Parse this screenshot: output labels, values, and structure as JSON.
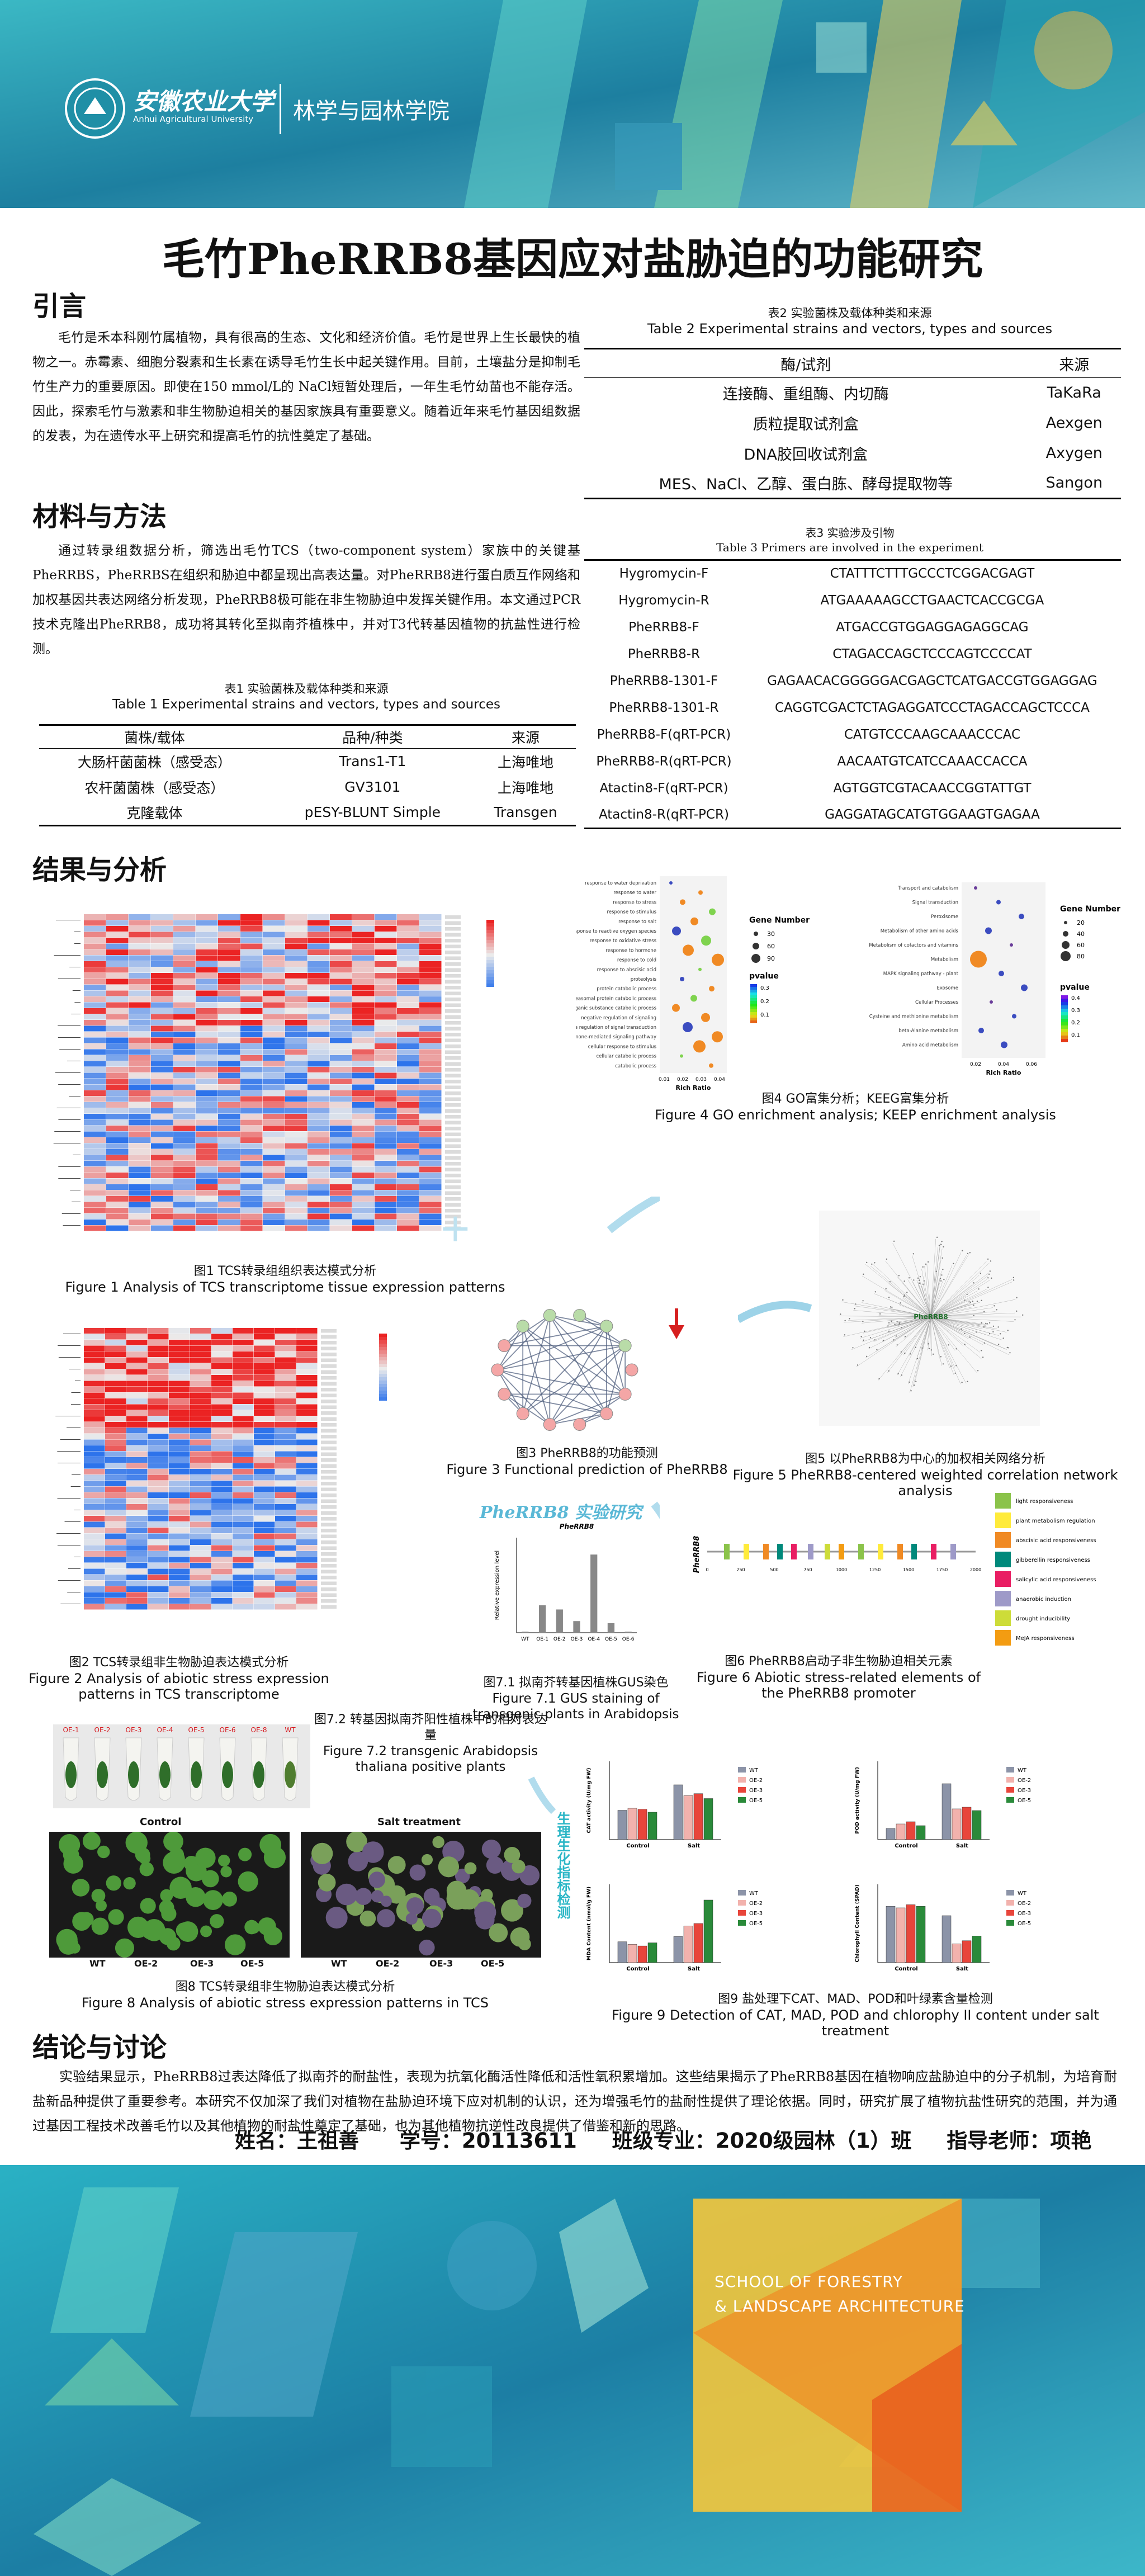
{
  "header": {
    "university_cn": "安徽农业大学",
    "university_en": "Anhui Agricultural University",
    "college": "林学与园林学院"
  },
  "title": "毛竹PheRRB8基因应对盐胁迫的功能研究",
  "intro": {
    "heading": "引言",
    "text": "毛竹是禾本科刚竹属植物，具有很高的生态、文化和经济价值。毛竹是世界上生长最快的植物之一。赤霉素、细胞分裂素和生长素在诱导毛竹生长中起关键作用。目前，土壤盐分是抑制毛竹生产力的重要原因。即使在150 mmol/L的 NaCl短暂处理后，一年生毛竹幼苗也不能存活。因此，探索毛竹与激素和非生物胁迫相关的基因家族具有重要意义。随着近年来毛竹基因组数据的发表，为在遗传水平上研究和提高毛竹的抗性奠定了基础。"
  },
  "methods": {
    "heading": "材料与方法",
    "text": "通过转录组数据分析，筛选出毛竹TCS（two-component system）家族中的关键基PheRRBS，PheRRBS在组织和胁迫中都呈现出高表达量。对PheRRB8进行蛋白质互作网络和加权基因共表达网络分析发现，PheRRB8极可能在非生物胁迫中发挥关键作用。本文通过PCR技术克隆出PheRRB8，成功将其转化至拟南芥植株中，并对T3代转基因植物的抗盐性进行检测。"
  },
  "table1": {
    "cap_cn": "表1 实验菌株及载体种类和来源",
    "cap_en": "Table 1 Experimental strains and vectors, types and sources",
    "headers": [
      "菌株/载体",
      "品种/种类",
      "来源"
    ],
    "rows": [
      [
        "大肠杆菌菌株（感受态）",
        "Trans1-T1",
        "上海唯地"
      ],
      [
        "农杆菌菌株（感受态）",
        "GV3101",
        "上海唯地"
      ],
      [
        "克隆载体",
        "pESY-BLUNT Simple",
        "Transgen"
      ]
    ]
  },
  "table2": {
    "cap_cn": "表2 实验菌株及载体种类和来源",
    "cap_en": "Table 2 Experimental strains and vectors, types and sources",
    "headers": [
      "酶/试剂",
      "来源"
    ],
    "rows": [
      [
        "连接酶、重组酶、内切酶",
        "TaKaRa"
      ],
      [
        "质粒提取试剂盒",
        "Aexgen"
      ],
      [
        "DNA胶回收试剂盒",
        "Axygen"
      ],
      [
        "MES、NaCl、乙醇、蛋白胨、酵母提取物等",
        "Sangon"
      ]
    ]
  },
  "table3": {
    "cap_cn": "表3 实验涉及引物",
    "cap_en": "Table 3 Primers are involved in the experiment",
    "rows": [
      [
        "Hygromycin-F",
        "CTATTTCTTTGCCCTCGGACGAGT"
      ],
      [
        "Hygromycin-R",
        "ATGAAAAAGCCTGAACTCACCGCGA"
      ],
      [
        "PheRRB8-F",
        "ATGACCGTGGAGGAGAGGCAG"
      ],
      [
        "PheRRB8-R",
        "CTAGACCAGCTCCCAGTCCCCAT"
      ],
      [
        "PheRRB8-1301-F",
        "GAGAACACGGGGGACGAGCTCATGACCGTGGAGGAG"
      ],
      [
        "PheRRB8-1301-R",
        "CAGGTCGACTCTAGAGGATCCCTAGACCAGCTCCCA"
      ],
      [
        "PheRRB8-F(qRT-PCR)",
        "CATGTCCCAAGCAAACCCAC"
      ],
      [
        "PheRRB8-R(qRT-PCR)",
        "AACAATGTCATCCAAACCACCA"
      ],
      [
        "Atactin8-F(qRT-PCR)",
        "AGTGGTCGTACAACCGGTATTGT"
      ],
      [
        "Atactin8-R(qRT-PCR)",
        "GAGGATAGCATGTGGAAGTGAGAA"
      ]
    ]
  },
  "results": {
    "heading": "结果与分析"
  },
  "fig1": {
    "cap_cn": "图1 TCS转录组组织表达模式分析",
    "cap_en": "Figure 1 Analysis of TCS transcriptome tissue expression patterns"
  },
  "fig2": {
    "cap_cn": "图2 TCS转录组非生物胁迫表达模式分析",
    "cap_en": "Figure 2 Analysis of abiotic stress expression patterns in TCS transcriptome"
  },
  "fig3": {
    "cap_cn": "图3 PheRRB8的功能预测",
    "cap_en": "Figure 3 Functional prediction of PheRRB8"
  },
  "fig4": {
    "cap_cn": "图4 GO富集分析；KEEG富集分析",
    "cap_en": "Figure 4 GO enrichment analysis; KEEP enrichment analysis",
    "go_terms": [
      "response to water deprivation",
      "response to water",
      "response to stress",
      "response to stimulus",
      "response to salt",
      "response to reactive oxygen species",
      "response to oxidative stress",
      "response to hormone",
      "response to cold",
      "response to abscisic acid",
      "proteolysis",
      "protein catabolic process",
      "proteasomal protein catabolic process",
      "organic substance catabolic process",
      "negative regulation of signaling",
      "negative regulation of signal transduction",
      "hormone-mediated signaling pathway",
      "cellular response to stimulus",
      "cellular catabolic process",
      "catabolic process"
    ],
    "kegg_terms": [
      "Transport and catabolism",
      "Signal transduction",
      "Peroxisome",
      "Metabolism of other amino acids",
      "Metabolism of cofactors and vitamins",
      "Metabolism",
      "MAPK signaling pathway - plant",
      "Exosome",
      "Cellular Processes",
      "Cysteine and methionine metabolism",
      "beta-Alanine metabolism",
      "Amino acid metabolism"
    ],
    "legend_gene": "Gene Number",
    "legend_p": "pvalue",
    "xlabel": "Rich Ratio",
    "go_sizes": [
      "30",
      "60",
      "90"
    ],
    "kegg_sizes": [
      "20",
      "40",
      "60",
      "80"
    ],
    "go_x_ticks": [
      "0.01",
      "0.02",
      "0.03",
      "0.04"
    ],
    "kegg_x_ticks": [
      "0.02",
      "0.04",
      "0.06"
    ],
    "go_p_ticks": [
      "0.3",
      "0.2",
      "0.1"
    ],
    "kegg_p_ticks": [
      "0.4",
      "0.3",
      "0.2",
      "0.1"
    ]
  },
  "fig5": {
    "cap_cn": "图5 以PheRRB8为中心的加权相关网络分析",
    "cap_en": "Figure 5 PheRRB8-centered weighted correlation network analysis",
    "center": "PheRRB8"
  },
  "fig6": {
    "cap_cn": "图6 PheRRB8启动子非生物胁迫相关元素",
    "cap_en": "Figure 6 Abiotic stress-related elements of the PheRRB8 promoter",
    "gene_label": "PheRRB8",
    "legend": [
      "light responsiveness",
      "plant metabolism regulation",
      "abscisic acid responsiveness",
      "gibberellin responsiveness",
      "salicylic acid responsiveness",
      "anaerobic induction",
      "drought inducibility",
      "MeJA responsiveness"
    ]
  },
  "fig71": {
    "cap_cn": "图7.1 拟南芥转基因植株GUS染色",
    "cap_en": "Figure 7.1 GUS staining of transgenic plants in Arabidopsis",
    "title_art": "PheRRB8 实验研究",
    "subtitle": "PheRRB8",
    "ylabel": "Relative expression level"
  },
  "fig72": {
    "cap_cn": "图7.2 转基因拟南芥阳性植株中的相对表达量",
    "cap_en": "Figure 7.2 transgenic Arabidopsis thaliana positive plants",
    "lines": [
      "OE-1",
      "OE-2",
      "OE-3",
      "OE-4",
      "OE-5",
      "OE-6",
      "OE-8",
      "WT"
    ]
  },
  "fig8": {
    "cap_cn": "图8 TCS转录组非生物胁迫表达模式分析",
    "cap_en": "Figure 8 Analysis of abiotic stress expression patterns in TCS",
    "control": "Control",
    "salt": "Salt treatment",
    "labels_a": [
      "WT",
      "OE-2",
      "OE-3",
      "OE-5"
    ],
    "labels_b": [
      "WT",
      "OE-2",
      "OE-3",
      "OE-5"
    ]
  },
  "fig9": {
    "cap_cn": "图9 盐处理下CAT、MAD、POD和叶绿素含量检测",
    "cap_en": "Figure 9 Detection of CAT, MAD, POD and chlorophy II content under salt treatment",
    "side_label": "生理生化指标检测",
    "legend": [
      "WT",
      "OE-2",
      "OE-3",
      "OE-5"
    ],
    "groups": [
      "Control",
      "Salt"
    ],
    "panels": [
      {
        "ylabel": "CAT activity (U/mg FW)"
      },
      {
        "ylabel": "POD activity (U/mg FW)"
      },
      {
        "ylabel": "MDA Content (nmol/g FW)"
      },
      {
        "ylabel": "Chlorophyll Content (SPAD)"
      }
    ],
    "colors": [
      "#8c94a8",
      "#f2b2ad",
      "#e8453b",
      "#2a8a3a"
    ]
  },
  "chart_data": [
    {
      "type": "bar",
      "title": "PheRRB8",
      "ylabel": "Relative expression level",
      "categories": [
        "WT",
        "OE-1",
        "OE-2",
        "OE-3",
        "OE-4",
        "OE-5",
        "OE-6"
      ],
      "values": [
        1,
        26,
        22,
        11,
        74,
        9,
        1
      ],
      "ylim": [
        0,
        90
      ]
    },
    {
      "type": "bar",
      "title": "CAT",
      "ylabel": "CAT activity (U/mg FW)",
      "categories": [
        "Control",
        "Salt"
      ],
      "series": [
        {
          "name": "WT",
          "values": [
            30,
            56
          ]
        },
        {
          "name": "OE-2",
          "values": [
            32,
            45
          ]
        },
        {
          "name": "OE-3",
          "values": [
            31,
            47
          ]
        },
        {
          "name": "OE-5",
          "values": [
            28,
            42
          ]
        }
      ],
      "ylim": [
        0,
        80
      ]
    },
    {
      "type": "bar",
      "title": "POD",
      "ylabel": "POD activity (U/mg FW)",
      "categories": [
        "Control",
        "Salt"
      ],
      "series": [
        {
          "name": "WT",
          "values": [
            20,
            100
          ]
        },
        {
          "name": "OE-2",
          "values": [
            28,
            55
          ]
        },
        {
          "name": "OE-3",
          "values": [
            32,
            58
          ]
        },
        {
          "name": "OE-5",
          "values": [
            25,
            52
          ]
        }
      ],
      "ylim": [
        0,
        140
      ]
    },
    {
      "type": "bar",
      "title": "MDA",
      "ylabel": "MDA Content (nmol/g FW)",
      "categories": [
        "Control",
        "Salt"
      ],
      "series": [
        {
          "name": "WT",
          "values": [
            4,
            5
          ]
        },
        {
          "name": "OE-2",
          "values": [
            3.5,
            7
          ]
        },
        {
          "name": "OE-3",
          "values": [
            3.2,
            7.5
          ]
        },
        {
          "name": "OE-5",
          "values": [
            3.8,
            12
          ]
        }
      ],
      "ylim": [
        0,
        15
      ]
    },
    {
      "type": "bar",
      "title": "Chlorophyll",
      "ylabel": "Chlorophyll Content (SPAD)",
      "categories": [
        "Control",
        "Salt"
      ],
      "series": [
        {
          "name": "WT",
          "values": [
            36,
            30
          ]
        },
        {
          "name": "OE-2",
          "values": [
            35,
            12
          ]
        },
        {
          "name": "OE-3",
          "values": [
            37,
            14
          ]
        },
        {
          "name": "OE-5",
          "values": [
            36,
            17
          ]
        }
      ],
      "ylim": [
        0,
        50
      ]
    }
  ],
  "conclusion": {
    "heading": "结论与讨论",
    "text": "实验结果显示，PheRRB8过表达降低了拟南芥的耐盐性，表现为抗氧化酶活性降低和活性氧积累增加。这些结果揭示了PheRRB8基因在植物响应盐胁迫中的分子机制，为培育耐盐新品种提供了重要参考。本研究不仅加深了我们对植物在盐胁迫环境下应对机制的认识，还为增强毛竹的盐耐性提供了理论依据。同时，研究扩展了植物抗盐性研究的范围，并为通过基因工程技术改善毛竹以及其他植物的耐盐性奠定了基础，也为其他植物抗逆性改良提供了借鉴和新的思路。"
  },
  "footer_info": {
    "name": "姓名：王祖善",
    "id": "学号：20113611",
    "major": "班级专业：2020级园林（1）班",
    "advisor": "指导老师：项艳"
  },
  "footer": {
    "school_line1": "SCHOOL OF FORESTRY",
    "school_line2": "& LANDSCAPE ARCHITECTURE"
  }
}
